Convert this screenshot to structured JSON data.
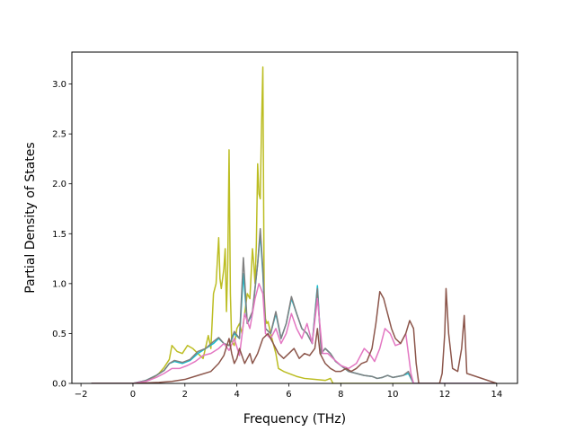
{
  "chart_data": {
    "type": "line",
    "title": "",
    "xlabel": "Frequency (THz)",
    "ylabel": "Partial Density of States",
    "xlim": [
      -2.35,
      14.8
    ],
    "ylim": [
      0.0,
      3.32
    ],
    "xticks": [
      -2,
      0,
      2,
      4,
      6,
      8,
      10,
      12,
      14
    ],
    "yticks": [
      0.0,
      0.5,
      1.0,
      1.5,
      2.0,
      2.5,
      3.0
    ],
    "xtick_labels": [
      "−2",
      "0",
      "2",
      "4",
      "6",
      "8",
      "10",
      "12",
      "14"
    ],
    "ytick_labels": [
      "0.0",
      "0.5",
      "1.0",
      "1.5",
      "2.0",
      "2.5",
      "3.0"
    ],
    "grid": false,
    "legend": "none",
    "series": [
      {
        "color": "#bcbd22",
        "x": [
          -1.6,
          0.0,
          0.4,
          0.8,
          1.0,
          1.2,
          1.4,
          1.5,
          1.7,
          1.9,
          2.1,
          2.3,
          2.5,
          2.7,
          2.9,
          3.0,
          3.1,
          3.2,
          3.3,
          3.35,
          3.4,
          3.5,
          3.55,
          3.6,
          3.65,
          3.7,
          3.75,
          3.8,
          3.9,
          4.0,
          4.1,
          4.2,
          4.3,
          4.4,
          4.5,
          4.6,
          4.65,
          4.7,
          4.75,
          4.8,
          4.85,
          4.9,
          4.95,
          5.0,
          5.05,
          5.1,
          5.15,
          5.2,
          5.3,
          5.4,
          5.5,
          5.6,
          5.8,
          6.0,
          6.3,
          6.6,
          7.0,
          7.4,
          7.6,
          7.7,
          8.0,
          14.0
        ],
        "y": [
          0.0,
          0.0,
          0.02,
          0.06,
          0.1,
          0.16,
          0.24,
          0.38,
          0.32,
          0.3,
          0.38,
          0.35,
          0.3,
          0.25,
          0.48,
          0.35,
          0.9,
          1.0,
          1.46,
          1.05,
          0.95,
          1.15,
          1.35,
          0.72,
          1.2,
          2.34,
          0.9,
          0.42,
          0.38,
          0.55,
          0.6,
          0.5,
          0.7,
          0.9,
          0.85,
          1.35,
          1.2,
          1.0,
          1.4,
          2.2,
          1.9,
          1.85,
          2.6,
          3.17,
          0.9,
          0.65,
          0.6,
          0.62,
          0.5,
          0.4,
          0.3,
          0.15,
          0.12,
          0.1,
          0.07,
          0.05,
          0.04,
          0.03,
          0.05,
          0.0,
          0.0,
          0.0
        ]
      },
      {
        "color": "#17becf",
        "x": [
          -1.6,
          0.0,
          0.5,
          0.9,
          1.2,
          1.4,
          1.6,
          1.9,
          2.2,
          2.5,
          2.8,
          3.1,
          3.3,
          3.5,
          3.7,
          3.9,
          4.1,
          4.25,
          4.4,
          4.6,
          4.8,
          4.9,
          5.0,
          5.1,
          5.3,
          5.5,
          5.7,
          5.9,
          6.1,
          6.3,
          6.5,
          6.7,
          6.9,
          7.1,
          7.25,
          7.4,
          7.6,
          7.8,
          8.0,
          8.3,
          8.6,
          8.9,
          9.2,
          9.4,
          9.6,
          9.8,
          10.0,
          10.2,
          10.4,
          10.6,
          10.8,
          11.0,
          14.0
        ],
        "y": [
          0.0,
          0.0,
          0.03,
          0.08,
          0.13,
          0.2,
          0.22,
          0.2,
          0.23,
          0.3,
          0.35,
          0.4,
          0.45,
          0.4,
          0.38,
          0.5,
          0.45,
          1.1,
          0.6,
          0.7,
          1.2,
          1.5,
          1.1,
          0.55,
          0.5,
          0.7,
          0.45,
          0.6,
          0.85,
          0.7,
          0.55,
          0.5,
          0.4,
          0.98,
          0.3,
          0.35,
          0.3,
          0.22,
          0.18,
          0.12,
          0.1,
          0.08,
          0.07,
          0.05,
          0.06,
          0.08,
          0.06,
          0.07,
          0.08,
          0.1,
          0.0,
          0.0,
          0.0
        ]
      },
      {
        "color": "#7f7f7f",
        "x": [
          -1.6,
          0.0,
          0.5,
          0.9,
          1.2,
          1.4,
          1.6,
          1.9,
          2.2,
          2.5,
          2.8,
          3.1,
          3.3,
          3.5,
          3.7,
          3.9,
          4.1,
          4.25,
          4.4,
          4.6,
          4.8,
          4.9,
          5.0,
          5.1,
          5.3,
          5.5,
          5.7,
          5.9,
          6.1,
          6.3,
          6.5,
          6.7,
          6.9,
          7.1,
          7.25,
          7.4,
          7.6,
          7.8,
          8.0,
          8.3,
          8.6,
          8.9,
          9.2,
          9.4,
          9.6,
          9.8,
          10.0,
          10.2,
          10.4,
          10.6,
          10.8,
          11.0,
          14.0
        ],
        "y": [
          0.0,
          0.0,
          0.03,
          0.08,
          0.13,
          0.2,
          0.23,
          0.21,
          0.24,
          0.32,
          0.35,
          0.42,
          0.46,
          0.4,
          0.38,
          0.52,
          0.45,
          1.26,
          0.6,
          0.72,
          1.2,
          1.55,
          1.15,
          0.55,
          0.5,
          0.72,
          0.45,
          0.6,
          0.87,
          0.7,
          0.55,
          0.5,
          0.4,
          0.95,
          0.3,
          0.35,
          0.3,
          0.22,
          0.18,
          0.12,
          0.1,
          0.08,
          0.07,
          0.05,
          0.06,
          0.08,
          0.06,
          0.07,
          0.08,
          0.12,
          0.0,
          0.0,
          0.0
        ]
      },
      {
        "color": "#e377c2",
        "x": [
          -1.6,
          0.0,
          0.5,
          0.9,
          1.2,
          1.5,
          1.8,
          2.1,
          2.4,
          2.7,
          3.0,
          3.3,
          3.5,
          3.7,
          3.9,
          4.1,
          4.3,
          4.5,
          4.7,
          4.85,
          5.0,
          5.1,
          5.3,
          5.5,
          5.7,
          5.9,
          6.1,
          6.3,
          6.5,
          6.7,
          6.9,
          7.1,
          7.3,
          7.5,
          7.7,
          8.0,
          8.3,
          8.6,
          8.9,
          9.1,
          9.3,
          9.5,
          9.7,
          9.9,
          10.1,
          10.3,
          10.5,
          10.7,
          10.8,
          14.0
        ],
        "y": [
          0.0,
          0.0,
          0.02,
          0.06,
          0.1,
          0.15,
          0.15,
          0.18,
          0.22,
          0.28,
          0.3,
          0.35,
          0.4,
          0.33,
          0.45,
          0.28,
          0.7,
          0.55,
          0.85,
          1.0,
          0.9,
          0.5,
          0.45,
          0.55,
          0.4,
          0.5,
          0.7,
          0.55,
          0.45,
          0.6,
          0.4,
          0.85,
          0.3,
          0.3,
          0.25,
          0.18,
          0.15,
          0.2,
          0.35,
          0.3,
          0.22,
          0.35,
          0.55,
          0.5,
          0.38,
          0.4,
          0.5,
          0.1,
          0.0,
          0.0
        ]
      },
      {
        "color": "#8c564b",
        "x": [
          -1.6,
          0.0,
          1.0,
          1.5,
          2.0,
          2.5,
          3.0,
          3.3,
          3.5,
          3.7,
          3.8,
          3.9,
          4.0,
          4.1,
          4.3,
          4.5,
          4.6,
          4.8,
          5.0,
          5.2,
          5.4,
          5.6,
          5.8,
          6.0,
          6.2,
          6.4,
          6.6,
          6.8,
          7.0,
          7.1,
          7.2,
          7.4,
          7.6,
          7.8,
          8.0,
          8.2,
          8.4,
          8.6,
          8.8,
          9.0,
          9.2,
          9.35,
          9.5,
          9.65,
          9.8,
          9.95,
          10.1,
          10.3,
          10.5,
          10.65,
          10.8,
          10.9,
          11.0,
          11.8,
          11.9,
          12.0,
          12.05,
          12.15,
          12.3,
          12.5,
          12.65,
          12.75,
          12.85,
          14.0
        ],
        "y": [
          0.0,
          0.0,
          0.01,
          0.02,
          0.04,
          0.08,
          0.12,
          0.2,
          0.28,
          0.45,
          0.3,
          0.2,
          0.25,
          0.35,
          0.2,
          0.3,
          0.2,
          0.3,
          0.45,
          0.5,
          0.4,
          0.3,
          0.25,
          0.3,
          0.35,
          0.25,
          0.3,
          0.28,
          0.35,
          0.55,
          0.3,
          0.2,
          0.15,
          0.12,
          0.12,
          0.15,
          0.12,
          0.15,
          0.2,
          0.22,
          0.35,
          0.6,
          0.92,
          0.85,
          0.7,
          0.55,
          0.45,
          0.4,
          0.5,
          0.63,
          0.55,
          0.2,
          0.0,
          0.0,
          0.1,
          0.5,
          0.95,
          0.5,
          0.15,
          0.12,
          0.35,
          0.68,
          0.1,
          0.0
        ]
      }
    ]
  }
}
